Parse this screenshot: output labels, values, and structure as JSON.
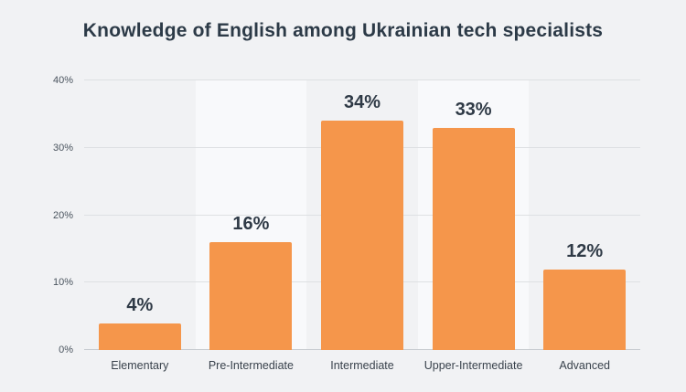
{
  "chart_data": {
    "type": "bar",
    "title": "Knowledge of English among Ukrainian tech specialists",
    "categories": [
      "Elementary",
      "Pre-Intermediate",
      "Intermediate",
      "Upper-Intermediate",
      "Advanced"
    ],
    "values": [
      4,
      16,
      34,
      33,
      12
    ],
    "value_labels": [
      "4%",
      "16%",
      "34%",
      "33%",
      "12%"
    ],
    "yticks": [
      "0%",
      "10%",
      "20%",
      "30%",
      "40%"
    ],
    "ytick_values": [
      0,
      10,
      20,
      30,
      40
    ],
    "ylim": [
      0,
      40
    ],
    "xlabel": "",
    "ylabel": "",
    "grid": "horizontal",
    "legend": "none",
    "colors": {
      "bar_color": "#F5964B",
      "background_color": "#F1F2F4",
      "band_color": "#F8F9FB",
      "gridline_color": "#DEE0E3",
      "title_color": "#2C3A47"
    },
    "column_bands": "alternate"
  }
}
